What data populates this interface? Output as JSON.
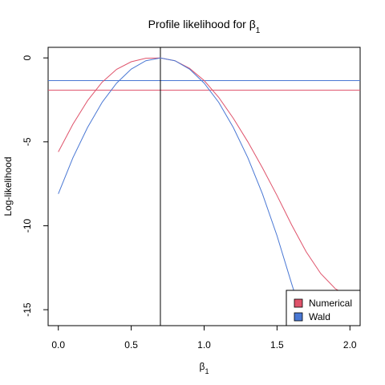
{
  "chart_data": {
    "type": "line",
    "title": "Profile likelihood for β",
    "title_subscript": "1",
    "xlabel": "β",
    "xlabel_subscript": "1",
    "ylabel": "Log-likelihood",
    "xlim": [
      -0.07,
      2.07
    ],
    "ylim": [
      -15.95,
      0.63
    ],
    "xticks": [
      0,
      0.5,
      1,
      1.5,
      2
    ],
    "xtick_labels": [
      "0.0",
      "0.5",
      "1.0",
      "1.5",
      "2.0"
    ],
    "yticks": [
      0,
      -5,
      -10,
      -15
    ],
    "ytick_labels": [
      "0",
      "-5",
      "-10",
      "-15"
    ],
    "grid": false,
    "legend_position": "bottom-right",
    "series": [
      {
        "name": "Numerical",
        "color": "#DF536B",
        "x": [
          0.0,
          0.1,
          0.2,
          0.3,
          0.4,
          0.5,
          0.6,
          0.7,
          0.8,
          0.9,
          1.0,
          1.1,
          1.2,
          1.3,
          1.4,
          1.5,
          1.6,
          1.7,
          1.8,
          1.9,
          1.93
        ],
        "y": [
          -5.6,
          -3.95,
          -2.55,
          -1.45,
          -0.68,
          -0.23,
          -0.02,
          0.0,
          -0.17,
          -0.62,
          -1.35,
          -2.35,
          -3.6,
          -5.0,
          -6.55,
          -8.2,
          -9.95,
          -11.55,
          -12.85,
          -13.75,
          -13.9
        ]
      },
      {
        "name": "Wald",
        "color": "#4A78D4",
        "x": [
          0.0,
          0.1,
          0.2,
          0.3,
          0.4,
          0.5,
          0.6,
          0.7,
          0.8,
          0.9,
          1.0,
          1.1,
          1.2,
          1.3,
          1.4,
          1.5,
          1.6,
          1.62
        ],
        "y": [
          -8.1,
          -5.95,
          -4.15,
          -2.65,
          -1.5,
          -0.67,
          -0.17,
          0.0,
          -0.17,
          -0.67,
          -1.5,
          -2.65,
          -4.15,
          -5.95,
          -8.1,
          -10.6,
          -13.45,
          -14.0
        ]
      }
    ],
    "hlines": [
      {
        "y": -1.92,
        "color": "#DF536B"
      },
      {
        "y": -1.35,
        "color": "#4A78D4"
      }
    ],
    "vlines": [
      {
        "x": 0.7,
        "color": "#000000"
      }
    ]
  }
}
